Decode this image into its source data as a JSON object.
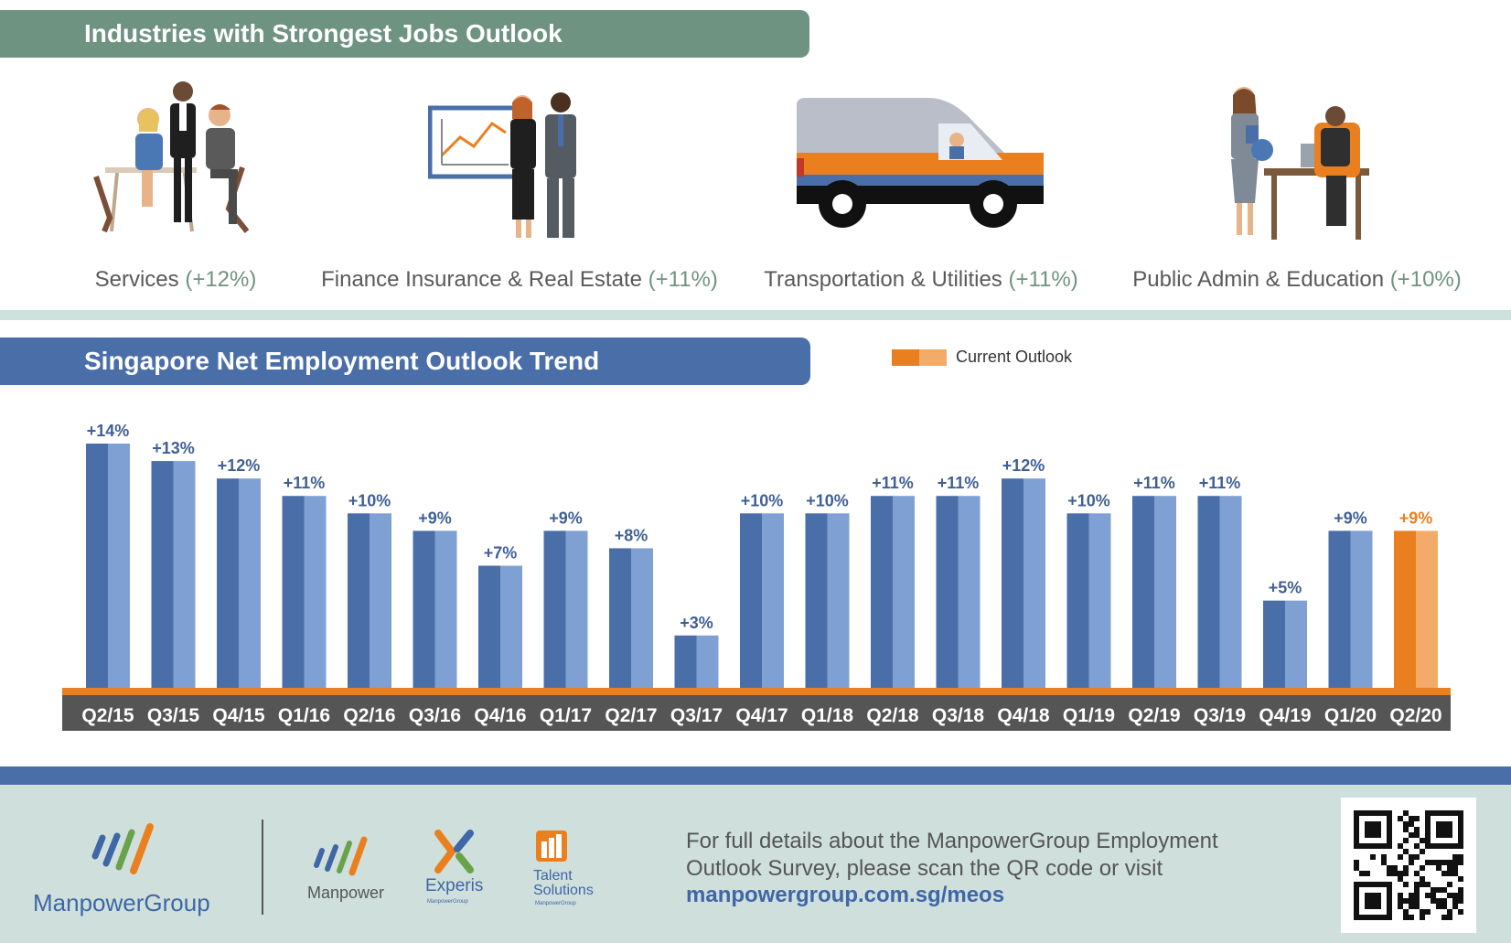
{
  "industries": {
    "title": "Industries with Strongest Jobs Outlook",
    "items": [
      {
        "name": "Services",
        "pct": "(+12%)",
        "icon": "restaurant-scene-icon"
      },
      {
        "name": "Finance Insurance & Real Estate",
        "pct": "(+11%)",
        "icon": "business-people-chart-icon"
      },
      {
        "name": "Transportation & Utilities",
        "pct": "(+11%)",
        "icon": "delivery-van-icon"
      },
      {
        "name": "Public Admin & Education",
        "pct": "(+10%)",
        "icon": "teacher-desk-icon"
      }
    ]
  },
  "trend": {
    "title": "Singapore Net Employment Outlook Trend",
    "legend_label": "Current Outlook"
  },
  "chart_data": {
    "type": "bar",
    "title": "Singapore Net Employment Outlook Trend",
    "categories": [
      "Q2/15",
      "Q3/15",
      "Q4/15",
      "Q1/16",
      "Q2/16",
      "Q3/16",
      "Q4/16",
      "Q1/17",
      "Q2/17",
      "Q3/17",
      "Q4/17",
      "Q1/18",
      "Q2/18",
      "Q3/18",
      "Q4/18",
      "Q1/19",
      "Q2/19",
      "Q3/19",
      "Q4/19",
      "Q1/20",
      "Q2/20"
    ],
    "values": [
      14,
      13,
      12,
      11,
      10,
      9,
      7,
      9,
      8,
      3,
      10,
      10,
      11,
      11,
      12,
      10,
      11,
      11,
      5,
      9,
      9
    ],
    "value_labels": [
      "+14%",
      "+13%",
      "+12%",
      "+11%",
      "+10%",
      "+9%",
      "+7%",
      "+9%",
      "+8%",
      "+3%",
      "+10%",
      "+10%",
      "+11%",
      "+11%",
      "+12%",
      "+10%",
      "+11%",
      "+11%",
      "+5%",
      "+9%",
      "+9%"
    ],
    "highlight_index": 20,
    "legend": [
      "Current Outlook"
    ],
    "legend_position": "top-right",
    "ylim": [
      0,
      14
    ],
    "grid": false,
    "colors": {
      "bar_dark": "#4a6fa8",
      "bar_light": "#7fa0d3",
      "current_dark": "#e97f1f",
      "current_light": "#f3ab6a",
      "label": "#3f5f96",
      "current_label": "#e97f1f",
      "axis_band": "#555555"
    }
  },
  "footer": {
    "brand": "ManpowerGroup",
    "sub_brands": [
      "Manpower",
      "Experis",
      "Talent Solutions"
    ],
    "sub_brand_taglines": [
      "ManpowerGroup",
      "ManpowerGroup"
    ],
    "text": "For full details about the ManpowerGroup Employment Outlook Survey, please scan the QR code or visit",
    "link": "manpowergroup.com.sg/meos"
  }
}
